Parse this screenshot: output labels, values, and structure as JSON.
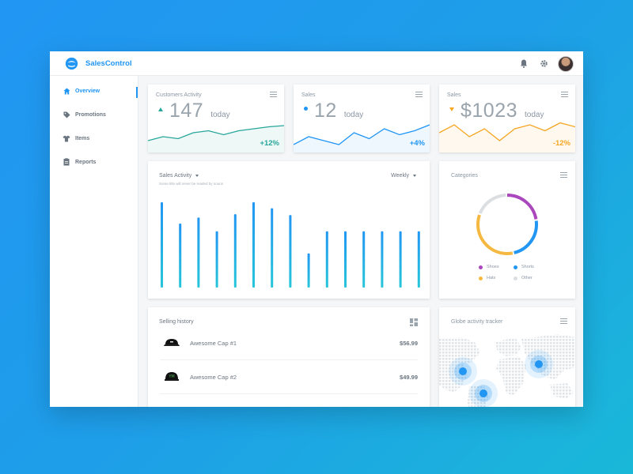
{
  "app": {
    "name": "SalesControl"
  },
  "sidebar": {
    "items": [
      {
        "label": "Overview",
        "icon": "home-icon",
        "active": true
      },
      {
        "label": "Promotions",
        "icon": "tag-icon"
      },
      {
        "label": "Items",
        "icon": "shirt-icon"
      },
      {
        "label": "Reports",
        "icon": "clipboard-icon"
      }
    ]
  },
  "stats": [
    {
      "title": "Customers Activity",
      "value": "147",
      "unit": "today",
      "delta": "+12%",
      "trend": "up",
      "color": "#26a69a"
    },
    {
      "title": "Sales",
      "value": "12",
      "unit": "today",
      "delta": "+4%",
      "trend": "neutral",
      "color": "#2196f3"
    },
    {
      "title": "Sales",
      "value": "$1023",
      "unit": "today",
      "delta": "-12%",
      "trend": "down",
      "color": "#f5a623"
    }
  ],
  "sales_activity": {
    "title": "Sales Activity",
    "subtitle": "Some title will never be readed by nouns",
    "period": "Weekly"
  },
  "categories": {
    "title": "Categories",
    "legend": [
      "Shoes",
      "Shorts",
      "Hats",
      "Other"
    ]
  },
  "history": {
    "title": "Selling history",
    "items": [
      {
        "name": "Awesome Cap #1",
        "price": "$56.99"
      },
      {
        "name": "Awesome Cap #2",
        "price": "$49.99"
      }
    ]
  },
  "globe": {
    "title": "Globe activity tracker"
  },
  "chart_data": [
    {
      "type": "line",
      "series": [
        {
          "values": [
            3,
            4,
            3.5,
            5,
            5.5,
            4.5,
            5.5,
            6,
            6.5,
            6.8
          ]
        }
      ],
      "color": "#26a69a"
    },
    {
      "type": "line",
      "series": [
        {
          "values": [
            2,
            4,
            3,
            2,
            5,
            3.5,
            6,
            4.5,
            5.5,
            7
          ]
        }
      ],
      "color": "#2196f3"
    },
    {
      "type": "line",
      "series": [
        {
          "values": [
            5,
            7,
            4,
            6,
            3,
            6,
            7,
            5.5,
            7.5,
            6.5
          ]
        }
      ],
      "color": "#f5a623"
    },
    {
      "type": "bar",
      "title": "Sales Activity",
      "values": [
        100,
        75,
        82,
        66,
        86,
        100,
        93,
        85,
        40,
        66,
        66,
        66,
        66,
        66,
        66
      ],
      "colors": [
        "#2196f3",
        "#26c6da"
      ]
    },
    {
      "type": "pie",
      "title": "Categories",
      "categories": [
        "Shoes",
        "Shorts",
        "Hats",
        "Other"
      ],
      "values": [
        23,
        24,
        34,
        19
      ],
      "colors": [
        "#ab47bc",
        "#2196f3",
        "#f5b942",
        "#dcdfe2"
      ]
    }
  ]
}
